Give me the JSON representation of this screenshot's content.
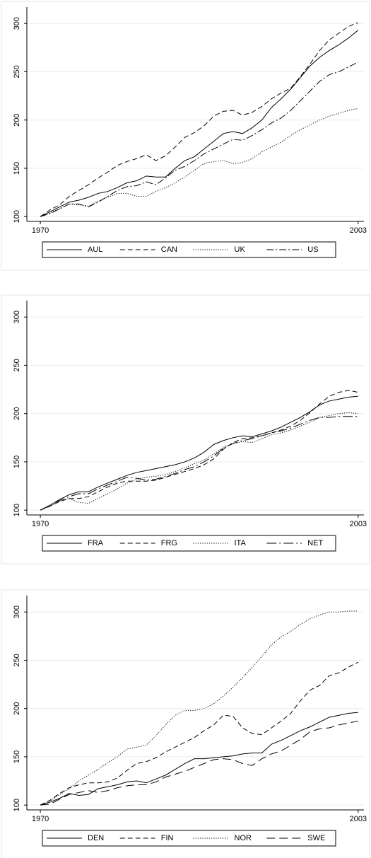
{
  "chart_data": [
    {
      "type": "line",
      "x": [
        1970,
        1971,
        1972,
        1973,
        1974,
        1975,
        1976,
        1977,
        1978,
        1979,
        1980,
        1981,
        1982,
        1983,
        1984,
        1985,
        1986,
        1987,
        1988,
        1989,
        1990,
        1991,
        1992,
        1993,
        1994,
        1995,
        1996,
        1997,
        1998,
        1999,
        2000,
        2001,
        2002,
        2003
      ],
      "xlim": [
        1968.6,
        2003.6
      ],
      "xticks": [
        1970,
        2003
      ],
      "ylim": [
        95,
        317
      ],
      "yticks": [
        100,
        150,
        200,
        250,
        300
      ],
      "grid": true,
      "series": [
        {
          "name": "AUL",
          "color": "#000000",
          "dash": "solid",
          "values": [
            100,
            105,
            110,
            115,
            117,
            120,
            124,
            126,
            130,
            135,
            137,
            142,
            141,
            141,
            150,
            158,
            162,
            170,
            178,
            186,
            188,
            186,
            192,
            200,
            213,
            222,
            232,
            244,
            256,
            265,
            272,
            278,
            285,
            293
          ]
        },
        {
          "name": "CAN",
          "color": "#000000",
          "dash": "dash",
          "values": [
            100,
            107,
            112,
            121,
            127,
            133,
            140,
            146,
            153,
            157,
            160,
            164,
            158,
            163,
            172,
            182,
            187,
            194,
            204,
            209,
            210,
            205,
            208,
            214,
            222,
            228,
            233,
            245,
            258,
            272,
            283,
            290,
            297,
            301
          ]
        },
        {
          "name": "UK",
          "color": "#000000",
          "dash": "dot",
          "values": [
            100,
            104,
            108,
            113,
            112,
            111,
            116,
            120,
            124,
            124,
            121,
            121,
            126,
            130,
            135,
            141,
            148,
            155,
            157,
            158,
            155,
            156,
            160,
            167,
            172,
            177,
            184,
            190,
            195,
            200,
            204,
            207,
            210,
            212
          ]
        },
        {
          "name": "US",
          "color": "#000000",
          "dash": "dashdot",
          "values": [
            100,
            103,
            108,
            113,
            113,
            110,
            115,
            121,
            127,
            131,
            132,
            136,
            133,
            140,
            148,
            152,
            158,
            165,
            170,
            175,
            180,
            179,
            184,
            190,
            197,
            202,
            210,
            220,
            230,
            240,
            247,
            250,
            255,
            260
          ]
        }
      ]
    },
    {
      "type": "line",
      "x": [
        1970,
        1971,
        1972,
        1973,
        1974,
        1975,
        1976,
        1977,
        1978,
        1979,
        1980,
        1981,
        1982,
        1983,
        1984,
        1985,
        1986,
        1987,
        1988,
        1989,
        1990,
        1991,
        1992,
        1993,
        1994,
        1995,
        1996,
        1997,
        1998,
        1999,
        2000,
        2001,
        2002,
        2003
      ],
      "xlim": [
        1968.6,
        2003.6
      ],
      "xticks": [
        1970,
        2003
      ],
      "ylim": [
        95,
        317
      ],
      "yticks": [
        100,
        150,
        200,
        250,
        300
      ],
      "grid": true,
      "series": [
        {
          "name": "FRA",
          "color": "#000000",
          "dash": "solid",
          "values": [
            100,
            105,
            111,
            116,
            119,
            119,
            124,
            128,
            132,
            136,
            139,
            141,
            143,
            145,
            147,
            150,
            154,
            160,
            168,
            172,
            175,
            177,
            176,
            179,
            182,
            186,
            191,
            196,
            202,
            209,
            213,
            215,
            217,
            218
          ]
        },
        {
          "name": "FRG",
          "color": "#000000",
          "dash": "dash",
          "values": [
            100,
            104,
            109,
            112,
            112,
            114,
            119,
            124,
            128,
            130,
            130,
            130,
            131,
            134,
            137,
            140,
            143,
            147,
            153,
            163,
            170,
            174,
            175,
            177,
            180,
            183,
            187,
            193,
            201,
            210,
            218,
            222,
            224,
            222
          ]
        },
        {
          "name": "ITA",
          "color": "#000000",
          "dash": "dot",
          "values": [
            100,
            104,
            109,
            112,
            108,
            107,
            112,
            117,
            122,
            128,
            132,
            134,
            135,
            137,
            140,
            144,
            148,
            152,
            158,
            165,
            169,
            171,
            170,
            174,
            178,
            180,
            183,
            187,
            191,
            196,
            198,
            200,
            201,
            200
          ]
        },
        {
          "name": "NET",
          "color": "#000000",
          "dash": "longdashdot",
          "values": [
            100,
            105,
            110,
            114,
            117,
            117,
            122,
            126,
            130,
            134,
            133,
            131,
            132,
            135,
            138,
            142,
            145,
            150,
            156,
            164,
            169,
            172,
            174,
            177,
            180,
            182,
            185,
            189,
            193,
            196,
            196,
            197,
            197,
            197
          ]
        }
      ]
    },
    {
      "type": "line",
      "x": [
        1970,
        1971,
        1972,
        1973,
        1974,
        1975,
        1976,
        1977,
        1978,
        1979,
        1980,
        1981,
        1982,
        1983,
        1984,
        1985,
        1986,
        1987,
        1988,
        1989,
        1990,
        1991,
        1992,
        1993,
        1994,
        1995,
        1996,
        1997,
        1998,
        1999,
        2000,
        2001,
        2002,
        2003
      ],
      "xlim": [
        1968.6,
        2003.6
      ],
      "xticks": [
        1970,
        2003
      ],
      "ylim": [
        95,
        317
      ],
      "yticks": [
        100,
        150,
        200,
        250,
        300
      ],
      "grid": true,
      "series": [
        {
          "name": "DEN",
          "color": "#000000",
          "dash": "solid",
          "values": [
            100,
            103,
            107,
            112,
            110,
            111,
            117,
            119,
            121,
            124,
            125,
            123,
            127,
            131,
            137,
            143,
            148,
            148,
            149,
            150,
            151,
            153,
            154,
            154,
            163,
            167,
            172,
            177,
            181,
            186,
            191,
            193,
            195,
            196
          ]
        },
        {
          "name": "FIN",
          "color": "#000000",
          "dash": "dash",
          "values": [
            100,
            105,
            112,
            118,
            121,
            123,
            123,
            124,
            128,
            136,
            143,
            145,
            149,
            155,
            160,
            165,
            170,
            177,
            183,
            193,
            192,
            180,
            174,
            173,
            180,
            187,
            195,
            208,
            219,
            224,
            234,
            237,
            243,
            248
          ]
        },
        {
          "name": "NOR",
          "color": "#000000",
          "dash": "dot",
          "values": [
            100,
            104,
            111,
            117,
            125,
            131,
            137,
            144,
            150,
            158,
            160,
            162,
            172,
            183,
            193,
            198,
            198,
            200,
            205,
            213,
            222,
            232,
            243,
            254,
            266,
            274,
            280,
            287,
            293,
            297,
            300,
            300,
            301,
            301
          ]
        },
        {
          "name": "SWE",
          "color": "#000000",
          "dash": "longdash",
          "values": [
            100,
            101,
            106,
            111,
            113,
            115,
            113,
            115,
            118,
            120,
            121,
            121,
            124,
            129,
            132,
            135,
            139,
            143,
            147,
            148,
            147,
            143,
            141,
            148,
            153,
            156,
            162,
            168,
            176,
            179,
            180,
            183,
            185,
            187
          ]
        }
      ]
    }
  ]
}
